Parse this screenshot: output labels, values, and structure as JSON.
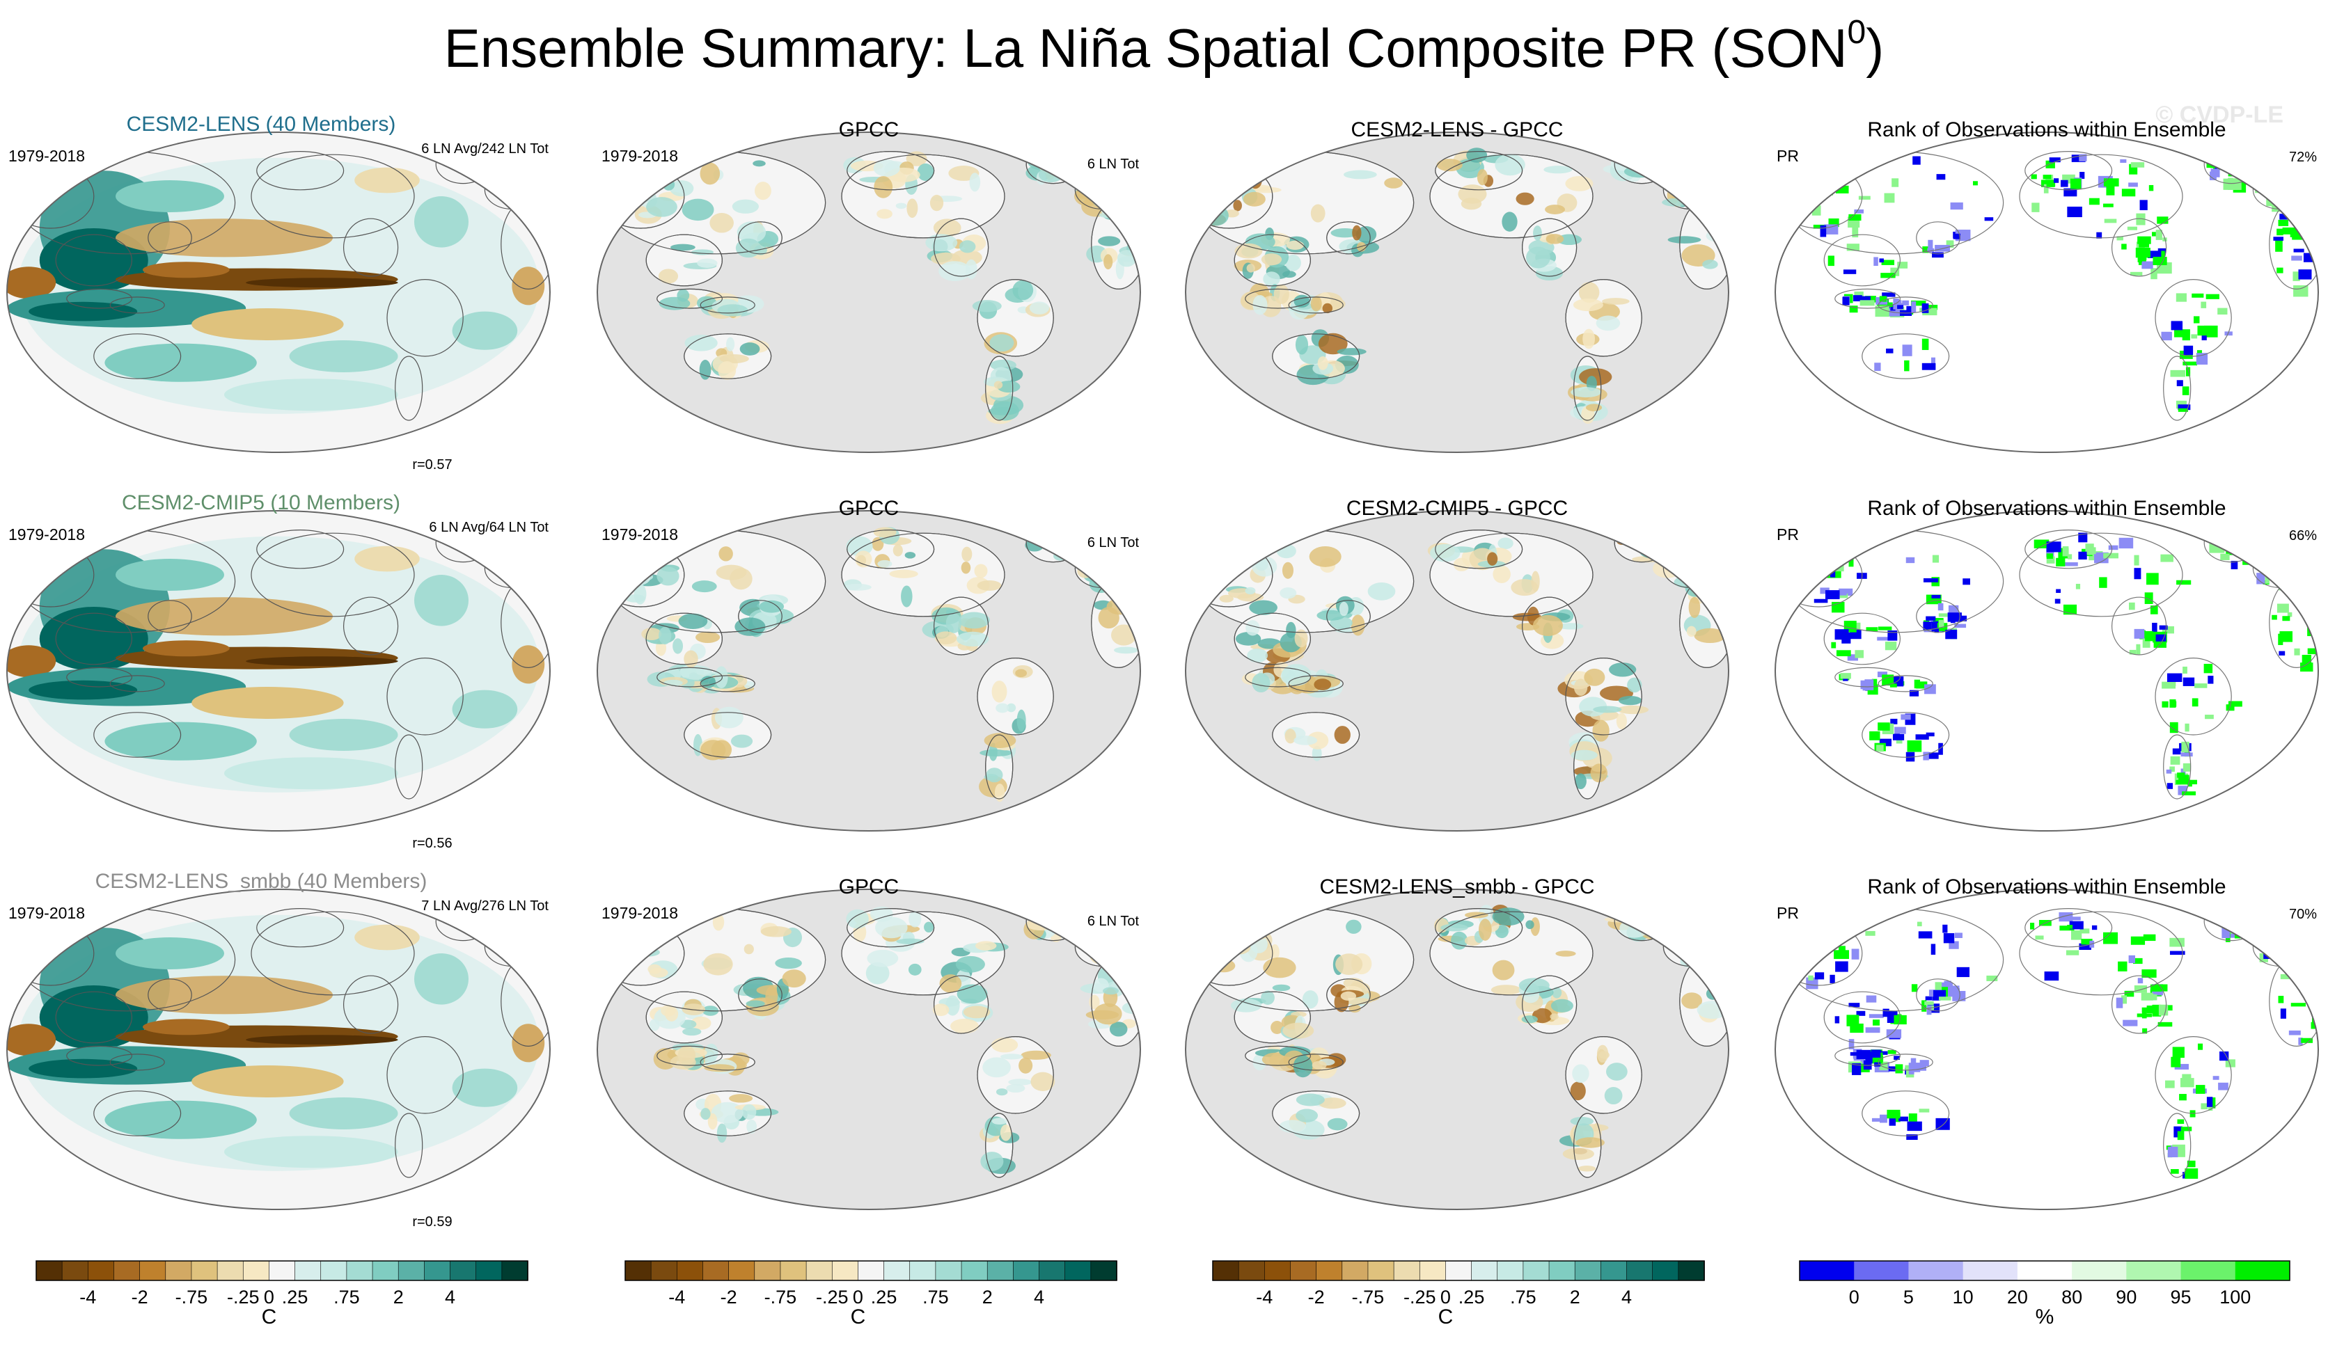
{
  "title": {
    "main": "Ensemble Summary: La Niña Spatial Composite PR (SON",
    "sup": "0",
    "close": ")"
  },
  "watermark": "© CVDP-LE",
  "colors": {
    "ocean_gray": "#e3e3e3",
    "land_white": "#ffffff",
    "title_lens": "#1f6e8c",
    "title_cmip5": "#5f8f6a",
    "title_smbb": "#8c8c8c",
    "rank_low": "#0000ee",
    "rank_high": "#00ff00"
  },
  "rows": [
    {
      "model_title": "CESM2-LENS (40 Members)",
      "period": "1979-2018",
      "counts": "6 LN Avg/242 LN Tot",
      "corr": "r=0.57",
      "obs_title": "GPCC",
      "obs_period": "1979-2018",
      "obs_counts": "6 LN Tot",
      "diff_title": "CESM2-LENS - GPCC",
      "rank_title": "Rank of Observations within Ensemble",
      "rank_var": "PR",
      "rank_pct": "72%"
    },
    {
      "model_title": "CESM2-CMIP5 (10 Members)",
      "period": "1979-2018",
      "counts": "6 LN Avg/64 LN Tot",
      "corr": "r=0.56",
      "obs_title": "GPCC",
      "obs_period": "1979-2018",
      "obs_counts": "6 LN Tot",
      "diff_title": "CESM2-CMIP5 - GPCC",
      "rank_title": "Rank of Observations within Ensemble",
      "rank_var": "PR",
      "rank_pct": "66%"
    },
    {
      "model_title": "CESM2-LENS_smbb (40 Members)",
      "period": "1979-2018",
      "counts": "7 LN Avg/276 LN Tot",
      "corr": "r=0.59",
      "obs_title": "GPCC",
      "obs_period": "1979-2018",
      "obs_counts": "6 LN Tot",
      "diff_title": "CESM2-LENS_smbb - GPCC",
      "rank_title": "Rank of Observations within Ensemble",
      "rank_var": "PR",
      "rank_pct": "70%"
    }
  ],
  "chart_data": {
    "type": "heatmap",
    "description_free": true,
    "panels_per_row": 4,
    "projection": "Robinson, Pacific-centered",
    "colorbar_pr": {
      "label": "C",
      "levels": [
        -5,
        -4,
        -3,
        -2,
        -1,
        -0.75,
        -0.5,
        -0.25,
        0,
        0.25,
        0.5,
        0.75,
        1,
        2,
        3,
        4,
        5
      ],
      "tick_labels": [
        "-4",
        "-2",
        "-.75",
        "-.25",
        "0",
        ".25",
        ".75",
        "2",
        "4"
      ],
      "tick_values": [
        -4,
        -2,
        -0.75,
        -0.25,
        0,
        0.25,
        0.75,
        2,
        4
      ],
      "colors": [
        "#543005",
        "#7a4a0f",
        "#8c510a",
        "#a86b23",
        "#bf812d",
        "#d2a964",
        "#dfc27d",
        "#ecdcb0",
        "#f6e8c3",
        "#f5f5f5",
        "#d7eeec",
        "#c7eae5",
        "#a4dcd3",
        "#80cdc1",
        "#5bb1a7",
        "#35978f",
        "#18776f",
        "#01665e",
        "#003c30"
      ]
    },
    "colorbar_rank": {
      "label": "%",
      "tick_labels": [
        "0",
        "5",
        "10",
        "20",
        "80",
        "90",
        "95",
        "100"
      ],
      "bins": [
        [
          0,
          5
        ],
        [
          5,
          10
        ],
        [
          10,
          20
        ],
        [
          20,
          80
        ],
        [
          80,
          90
        ],
        [
          90,
          95
        ],
        [
          95,
          100
        ]
      ],
      "colors": [
        "#0000ee",
        "#6b6bf2",
        "#b0b0f6",
        "#e2e2fa",
        "#ffffff",
        "#e2fae2",
        "#b0f6b0",
        "#6bf26b",
        "#00ee00"
      ]
    }
  }
}
